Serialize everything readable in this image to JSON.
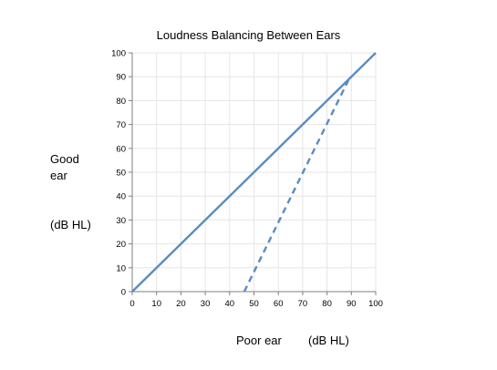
{
  "chart_data": {
    "type": "line",
    "title": "Loudness Balancing Between Ears",
    "ylabel_lines": [
      "Good",
      "ear",
      "(dB HL)"
    ],
    "xlabel_parts": [
      "Poor ear",
      "(dB HL)"
    ],
    "xlim": [
      0,
      100
    ],
    "ylim": [
      0,
      100
    ],
    "x_ticks": [
      0,
      10,
      20,
      30,
      40,
      50,
      60,
      70,
      80,
      90,
      100
    ],
    "y_ticks": [
      0,
      10,
      20,
      30,
      40,
      50,
      60,
      70,
      80,
      90,
      100
    ],
    "grid": true,
    "series": [
      {
        "style": "solid",
        "x": [
          0,
          100
        ],
        "y": [
          0,
          100
        ]
      },
      {
        "style": "dashed",
        "x": [
          46,
          89
        ],
        "y": [
          0,
          89
        ]
      }
    ],
    "colors": {
      "line": "#5b8cc0",
      "axis": "#7f7f7f",
      "grid": "#e6e6e6"
    }
  }
}
